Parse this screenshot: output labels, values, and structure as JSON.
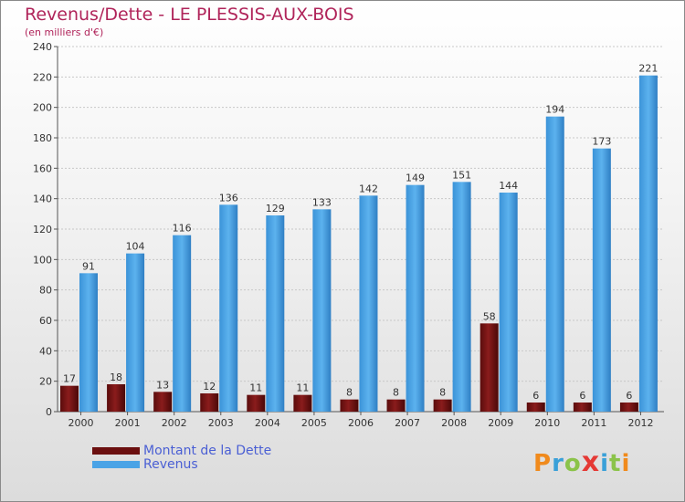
{
  "title": "Revenus/Dette - LE PLESSIS-AUX-BOIS",
  "subtitle": "(en milliers d'€)",
  "colors": {
    "dette": "#7a1616",
    "revenus": "#4aa3e6",
    "title": "#b0245a",
    "legend_text": "#4a5fd4"
  },
  "legend": [
    {
      "label": "Montant de la Dette",
      "color": "#6b0f0f"
    },
    {
      "label": "Revenus",
      "color": "#4aa3e6"
    }
  ],
  "logo": {
    "text": "Proxiti",
    "letters": [
      {
        "char": "P",
        "color": "#f08a1c"
      },
      {
        "char": "r",
        "color": "#3aa0d8"
      },
      {
        "char": "o",
        "color": "#8bc34a"
      },
      {
        "char": "x",
        "color": "#e53935"
      },
      {
        "char": "i",
        "color": "#3aa0d8"
      },
      {
        "char": "t",
        "color": "#8bc34a"
      },
      {
        "char": "i",
        "color": "#f08a1c"
      }
    ]
  },
  "chart_data": {
    "type": "bar",
    "categories": [
      "2000",
      "2001",
      "2002",
      "2003",
      "2004",
      "2005",
      "2006",
      "2007",
      "2008",
      "2009",
      "2010",
      "2011",
      "2012"
    ],
    "series": [
      {
        "name": "Montant de la Dette",
        "values": [
          17,
          18,
          13,
          12,
          11,
          11,
          8,
          8,
          8,
          58,
          6,
          6,
          6
        ]
      },
      {
        "name": "Revenus",
        "values": [
          91,
          104,
          116,
          136,
          129,
          133,
          142,
          149,
          151,
          144,
          194,
          173,
          221
        ]
      }
    ],
    "yticks": [
      "0",
      "20",
      "40",
      "60",
      "80",
      "100",
      "120",
      "140",
      "160",
      "180",
      "200",
      "220",
      "240"
    ],
    "ylim": [
      0,
      240
    ],
    "grid": true,
    "legend_position": "bottom-left"
  }
}
